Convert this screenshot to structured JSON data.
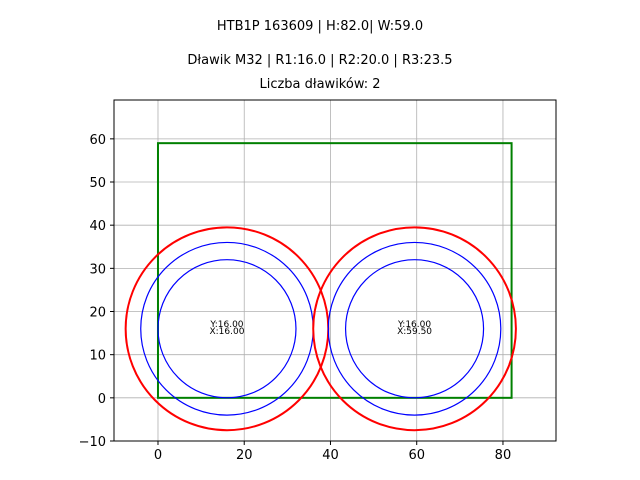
{
  "titles": {
    "line1": "HTB1P 163609 | H:82.0| W:59.0",
    "line2": "Dławik M32 | R1:16.0 | R2:20.0 | R3:23.5",
    "line3": "Liczba dławików: 2"
  },
  "chart_data": {
    "type": "scatter",
    "title": "HTB1P 163609 | H:82.0| W:59.0\nDławik M32 | R1:16.0 | R2:20.0 | R3:23.5\nLiczba dławików: 2",
    "xlabel": "",
    "ylabel": "",
    "xlim": [
      -10.2,
      92.3
    ],
    "ylim": [
      -10,
      69
    ],
    "grid": true,
    "x_ticks": [
      0,
      20,
      40,
      60,
      80
    ],
    "y_ticks": [
      -10,
      0,
      10,
      20,
      30,
      40,
      50,
      60
    ],
    "rectangle": {
      "x": 0,
      "y": 0,
      "width": 82,
      "height": 59,
      "color": "#008000"
    },
    "circles": [
      {
        "cx": 16.0,
        "cy": 16.0,
        "radii": [
          16.0,
          20.0,
          23.5
        ],
        "colors": [
          "#0000ff",
          "#0000ff",
          "#ff0000"
        ]
      },
      {
        "cx": 59.5,
        "cy": 16.0,
        "radii": [
          16.0,
          20.0,
          23.5
        ],
        "colors": [
          "#0000ff",
          "#0000ff",
          "#ff0000"
        ]
      }
    ],
    "annotations": [
      {
        "x": 16.0,
        "y": 16.0,
        "text_y": "Y:16.00",
        "text_x": "X:16.00"
      },
      {
        "x": 59.5,
        "y": 16.0,
        "text_y": "Y:16.00",
        "text_x": "X:59.50"
      }
    ]
  }
}
